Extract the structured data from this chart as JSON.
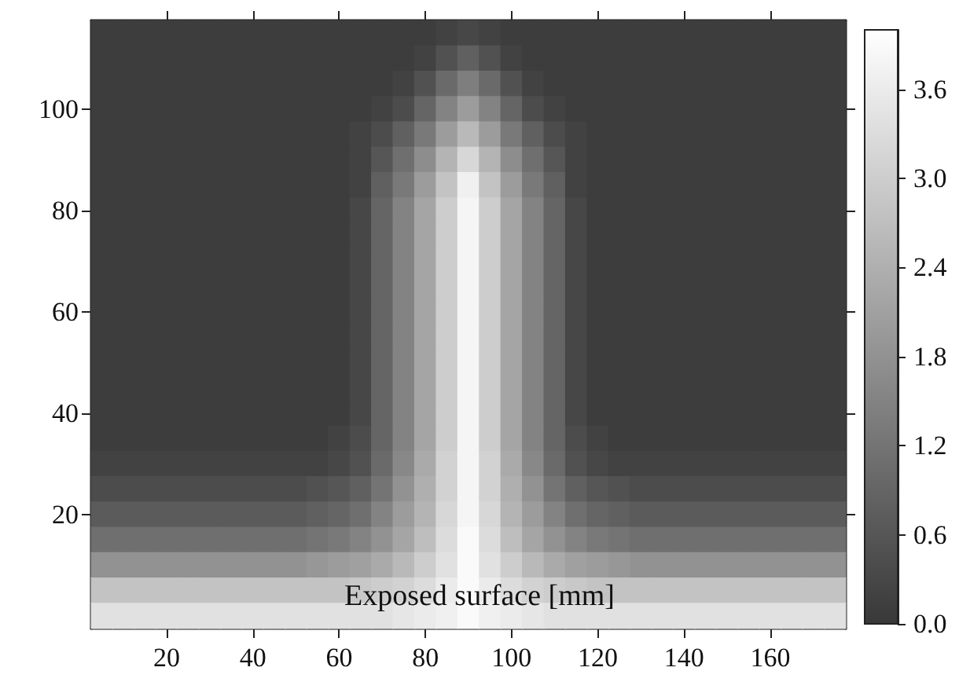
{
  "chart_data": {
    "type": "heatmap",
    "categories": [
      null,
      null,
      null,
      "20",
      null,
      null,
      null,
      "40",
      null,
      null,
      null,
      "60",
      null,
      null,
      null,
      "80",
      null,
      null,
      null,
      "100",
      null,
      null,
      null,
      "120",
      null,
      null,
      null,
      "140",
      null,
      null,
      null,
      "160",
      null,
      null,
      null
    ],
    "y_categories": [
      null,
      null,
      null,
      "100",
      null,
      null,
      null,
      "80",
      null,
      null,
      null,
      "60",
      null,
      null,
      null,
      "40",
      null,
      null,
      null,
      "20",
      null,
      null,
      null,
      null
    ],
    "clim": [
      0,
      4
    ],
    "cticks": [
      {
        "value": 0,
        "label": "0.0"
      },
      {
        "value": 0.6,
        "label": "0.6"
      },
      {
        "value": 1.2,
        "label": "1.2"
      },
      {
        "value": 1.8,
        "label": "1.8"
      },
      {
        "value": 2.4,
        "label": "2.4"
      },
      {
        "value": 3.0,
        "label": "3.0"
      },
      {
        "value": 3.6,
        "label": "3.6"
      }
    ],
    "annotations": [
      "Exposed surface [mm]"
    ],
    "cells": [
      [
        0.1,
        0.1,
        0.1,
        0.1,
        0.1,
        0.1,
        0.1,
        0.1,
        0.1,
        0.1,
        0.1,
        0.1,
        0.1,
        0.1,
        0.1,
        0.1,
        0.2,
        0.3,
        0.2,
        0.1,
        0.1,
        0.1,
        0.1,
        0.1,
        0.1,
        0.1,
        0.1,
        0.1,
        0.1,
        0.1,
        0.1,
        0.1,
        0.1,
        0.1,
        0.1
      ],
      [
        0.1,
        0.1,
        0.1,
        0.1,
        0.1,
        0.1,
        0.1,
        0.1,
        0.1,
        0.1,
        0.1,
        0.1,
        0.1,
        0.1,
        0.1,
        0.2,
        0.5,
        0.8,
        0.5,
        0.2,
        0.1,
        0.1,
        0.1,
        0.1,
        0.1,
        0.1,
        0.1,
        0.1,
        0.1,
        0.1,
        0.1,
        0.1,
        0.1,
        0.1,
        0.1
      ],
      [
        0.1,
        0.1,
        0.1,
        0.1,
        0.1,
        0.1,
        0.1,
        0.1,
        0.1,
        0.1,
        0.1,
        0.1,
        0.1,
        0.1,
        0.2,
        0.5,
        1.0,
        1.4,
        1.0,
        0.5,
        0.2,
        0.1,
        0.1,
        0.1,
        0.1,
        0.1,
        0.1,
        0.1,
        0.1,
        0.1,
        0.1,
        0.1,
        0.1,
        0.1,
        0.1
      ],
      [
        0.1,
        0.1,
        0.1,
        0.1,
        0.1,
        0.1,
        0.1,
        0.1,
        0.1,
        0.1,
        0.1,
        0.1,
        0.1,
        0.2,
        0.4,
        0.9,
        1.5,
        2.0,
        1.5,
        0.9,
        0.4,
        0.2,
        0.1,
        0.1,
        0.1,
        0.1,
        0.1,
        0.1,
        0.1,
        0.1,
        0.1,
        0.1,
        0.1,
        0.1,
        0.1
      ],
      [
        0.1,
        0.1,
        0.1,
        0.1,
        0.1,
        0.1,
        0.1,
        0.1,
        0.1,
        0.1,
        0.1,
        0.1,
        0.2,
        0.4,
        0.8,
        1.3,
        2.0,
        2.6,
        2.0,
        1.3,
        0.8,
        0.4,
        0.2,
        0.1,
        0.1,
        0.1,
        0.1,
        0.1,
        0.1,
        0.1,
        0.1,
        0.1,
        0.1,
        0.1,
        0.1
      ],
      [
        0.1,
        0.1,
        0.1,
        0.1,
        0.1,
        0.1,
        0.1,
        0.1,
        0.1,
        0.1,
        0.1,
        0.1,
        0.2,
        0.6,
        1.1,
        1.7,
        2.5,
        3.2,
        2.5,
        1.7,
        1.1,
        0.6,
        0.2,
        0.1,
        0.1,
        0.1,
        0.1,
        0.1,
        0.1,
        0.1,
        0.1,
        0.1,
        0.1,
        0.1,
        0.1
      ],
      [
        0.1,
        0.1,
        0.1,
        0.1,
        0.1,
        0.1,
        0.1,
        0.1,
        0.1,
        0.1,
        0.1,
        0.1,
        0.2,
        0.8,
        1.3,
        2.0,
        2.8,
        3.7,
        2.8,
        2.0,
        1.3,
        0.8,
        0.2,
        0.1,
        0.1,
        0.1,
        0.1,
        0.1,
        0.1,
        0.1,
        0.1,
        0.1,
        0.1,
        0.1,
        0.1
      ],
      [
        0.1,
        0.1,
        0.1,
        0.1,
        0.1,
        0.1,
        0.1,
        0.1,
        0.1,
        0.1,
        0.1,
        0.1,
        0.3,
        0.9,
        1.5,
        2.2,
        3.0,
        3.8,
        3.0,
        2.2,
        1.5,
        0.9,
        0.3,
        0.1,
        0.1,
        0.1,
        0.1,
        0.1,
        0.1,
        0.1,
        0.1,
        0.1,
        0.1,
        0.1,
        0.1
      ],
      [
        0.1,
        0.1,
        0.1,
        0.1,
        0.1,
        0.1,
        0.1,
        0.1,
        0.1,
        0.1,
        0.1,
        0.1,
        0.3,
        0.9,
        1.5,
        2.2,
        3.0,
        3.8,
        3.0,
        2.2,
        1.5,
        0.9,
        0.3,
        0.1,
        0.1,
        0.1,
        0.1,
        0.1,
        0.1,
        0.1,
        0.1,
        0.1,
        0.1,
        0.1,
        0.1
      ],
      [
        0.1,
        0.1,
        0.1,
        0.1,
        0.1,
        0.1,
        0.1,
        0.1,
        0.1,
        0.1,
        0.1,
        0.1,
        0.3,
        0.9,
        1.5,
        2.2,
        3.0,
        3.8,
        3.0,
        2.2,
        1.5,
        0.9,
        0.3,
        0.1,
        0.1,
        0.1,
        0.1,
        0.1,
        0.1,
        0.1,
        0.1,
        0.1,
        0.1,
        0.1,
        0.1
      ],
      [
        0.1,
        0.1,
        0.1,
        0.1,
        0.1,
        0.1,
        0.1,
        0.1,
        0.1,
        0.1,
        0.1,
        0.1,
        0.3,
        0.9,
        1.5,
        2.2,
        3.0,
        3.8,
        3.0,
        2.2,
        1.5,
        0.9,
        0.3,
        0.1,
        0.1,
        0.1,
        0.1,
        0.1,
        0.1,
        0.1,
        0.1,
        0.1,
        0.1,
        0.1,
        0.1
      ],
      [
        0.1,
        0.1,
        0.1,
        0.1,
        0.1,
        0.1,
        0.1,
        0.1,
        0.1,
        0.1,
        0.1,
        0.1,
        0.3,
        0.9,
        1.5,
        2.2,
        3.0,
        3.8,
        3.0,
        2.2,
        1.5,
        0.9,
        0.3,
        0.1,
        0.1,
        0.1,
        0.1,
        0.1,
        0.1,
        0.1,
        0.1,
        0.1,
        0.1,
        0.1,
        0.1
      ],
      [
        0.1,
        0.1,
        0.1,
        0.1,
        0.1,
        0.1,
        0.1,
        0.1,
        0.1,
        0.1,
        0.1,
        0.1,
        0.3,
        0.9,
        1.5,
        2.2,
        3.0,
        3.8,
        3.0,
        2.2,
        1.5,
        0.9,
        0.3,
        0.1,
        0.1,
        0.1,
        0.1,
        0.1,
        0.1,
        0.1,
        0.1,
        0.1,
        0.1,
        0.1,
        0.1
      ],
      [
        0.1,
        0.1,
        0.1,
        0.1,
        0.1,
        0.1,
        0.1,
        0.1,
        0.1,
        0.1,
        0.1,
        0.1,
        0.3,
        0.9,
        1.5,
        2.2,
        3.0,
        3.8,
        3.0,
        2.2,
        1.5,
        0.9,
        0.3,
        0.1,
        0.1,
        0.1,
        0.1,
        0.1,
        0.1,
        0.1,
        0.1,
        0.1,
        0.1,
        0.1,
        0.1
      ],
      [
        0.1,
        0.1,
        0.1,
        0.1,
        0.1,
        0.1,
        0.1,
        0.1,
        0.1,
        0.1,
        0.1,
        0.1,
        0.3,
        0.9,
        1.5,
        2.2,
        3.0,
        3.8,
        3.0,
        2.2,
        1.5,
        0.9,
        0.3,
        0.1,
        0.1,
        0.1,
        0.1,
        0.1,
        0.1,
        0.1,
        0.1,
        0.1,
        0.1,
        0.1,
        0.1
      ],
      [
        0.1,
        0.1,
        0.1,
        0.1,
        0.1,
        0.1,
        0.1,
        0.1,
        0.1,
        0.1,
        0.1,
        0.1,
        0.3,
        0.9,
        1.5,
        2.2,
        3.0,
        3.8,
        3.0,
        2.2,
        1.5,
        0.9,
        0.3,
        0.1,
        0.1,
        0.1,
        0.1,
        0.1,
        0.1,
        0.1,
        0.1,
        0.1,
        0.1,
        0.1,
        0.1
      ],
      [
        0.1,
        0.1,
        0.1,
        0.1,
        0.1,
        0.1,
        0.1,
        0.1,
        0.1,
        0.1,
        0.1,
        0.2,
        0.4,
        0.9,
        1.5,
        2.2,
        3.0,
        3.8,
        3.0,
        2.2,
        1.5,
        0.9,
        0.4,
        0.2,
        0.1,
        0.1,
        0.1,
        0.1,
        0.1,
        0.1,
        0.1,
        0.1,
        0.1,
        0.1,
        0.1
      ],
      [
        0.2,
        0.2,
        0.2,
        0.2,
        0.2,
        0.2,
        0.2,
        0.2,
        0.2,
        0.2,
        0.2,
        0.3,
        0.5,
        1.0,
        1.6,
        2.3,
        3.1,
        3.8,
        3.1,
        2.3,
        1.6,
        1.0,
        0.5,
        0.3,
        0.2,
        0.2,
        0.2,
        0.2,
        0.2,
        0.2,
        0.2,
        0.2,
        0.2,
        0.2,
        0.2
      ],
      [
        0.4,
        0.4,
        0.4,
        0.4,
        0.4,
        0.4,
        0.4,
        0.4,
        0.4,
        0.4,
        0.5,
        0.6,
        0.8,
        1.2,
        1.8,
        2.4,
        3.1,
        3.8,
        3.1,
        2.4,
        1.8,
        1.2,
        0.8,
        0.6,
        0.5,
        0.4,
        0.4,
        0.4,
        0.4,
        0.4,
        0.4,
        0.4,
        0.4,
        0.4,
        0.4
      ],
      [
        0.7,
        0.7,
        0.7,
        0.7,
        0.7,
        0.7,
        0.7,
        0.7,
        0.7,
        0.7,
        0.8,
        0.9,
        1.1,
        1.5,
        2.0,
        2.5,
        3.2,
        3.8,
        3.2,
        2.5,
        2.0,
        1.5,
        1.1,
        0.9,
        0.8,
        0.7,
        0.7,
        0.7,
        0.7,
        0.7,
        0.7,
        0.7,
        0.7,
        0.7,
        0.7
      ],
      [
        1.1,
        1.1,
        1.1,
        1.1,
        1.1,
        1.1,
        1.1,
        1.1,
        1.1,
        1.1,
        1.2,
        1.3,
        1.5,
        1.8,
        2.2,
        2.7,
        3.3,
        3.9,
        3.3,
        2.7,
        2.2,
        1.8,
        1.5,
        1.3,
        1.2,
        1.1,
        1.1,
        1.1,
        1.1,
        1.1,
        1.1,
        1.1,
        1.1,
        1.1,
        1.1
      ],
      [
        1.8,
        1.8,
        1.8,
        1.8,
        1.8,
        1.8,
        1.8,
        1.8,
        1.8,
        1.8,
        1.9,
        2.0,
        2.1,
        2.3,
        2.6,
        3.0,
        3.4,
        3.9,
        3.4,
        3.0,
        2.6,
        2.3,
        2.1,
        2.0,
        1.9,
        1.8,
        1.8,
        1.8,
        1.8,
        1.8,
        1.8,
        1.8,
        1.8,
        1.8,
        1.8
      ],
      [
        2.8,
        2.8,
        2.8,
        2.8,
        2.8,
        2.8,
        2.8,
        2.8,
        2.8,
        2.8,
        2.8,
        2.8,
        2.9,
        3.0,
        3.1,
        3.3,
        3.6,
        3.9,
        3.6,
        3.3,
        3.1,
        3.0,
        2.9,
        2.8,
        2.8,
        2.8,
        2.8,
        2.8,
        2.8,
        2.8,
        2.8,
        2.8,
        2.8,
        2.8,
        2.8
      ],
      [
        3.4,
        3.4,
        3.4,
        3.4,
        3.4,
        3.4,
        3.4,
        3.4,
        3.4,
        3.4,
        3.4,
        3.4,
        3.4,
        3.4,
        3.5,
        3.6,
        3.7,
        3.9,
        3.7,
        3.6,
        3.5,
        3.4,
        3.4,
        3.4,
        3.4,
        3.4,
        3.4,
        3.4,
        3.4,
        3.4,
        3.4,
        3.4,
        3.4,
        3.4,
        3.4
      ]
    ]
  }
}
